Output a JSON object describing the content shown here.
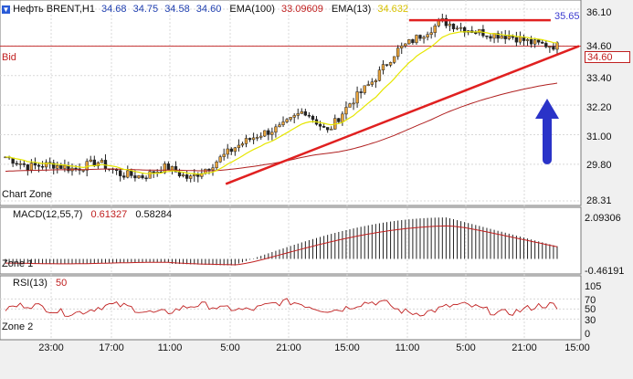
{
  "header": {
    "instrument": "Нефть BRENT,H1",
    "ohlc": [
      "34.68",
      "34.75",
      "34.58",
      "34.60"
    ],
    "ema100_label": "EMA(100)",
    "ema100_value": "33.09609",
    "ema13_label": "EMA(13)",
    "ema13_value": "34.632"
  },
  "main": {
    "bid_label": "Bid",
    "zone_label": "Chart Zone",
    "current_price": "34.60",
    "high_label": "35.65"
  },
  "macd": {
    "title": "MACD(12,55,7)",
    "value1": "0.61327",
    "value2": "0.58284",
    "zone_label": "Zone 1"
  },
  "rsi": {
    "title": "RSI(13)",
    "value": "50",
    "zone_label": "Zone 2"
  },
  "colors": {
    "bull": "#e8a33a",
    "bear": "#222222",
    "ema13": "#e6e600",
    "ema100": "#b02020",
    "trend": "#e02020",
    "arrow": "#2a33c8",
    "macd_signal": "#c02020",
    "rsi": "#c02020",
    "bid": "#c02020"
  },
  "chart_data": [
    {
      "type": "candlestick",
      "title": "Нефть BRENT,H1",
      "ylim": [
        28.31,
        36.1
      ],
      "y_ticks": [
        "36.10",
        "34.60",
        "33.40",
        "32.20",
        "31.00",
        "29.80",
        "28.31"
      ],
      "x_ticks": [
        "23:00",
        "17:00",
        "11:00",
        "5:00",
        "21:00",
        "15:00",
        "11:00",
        "5:00",
        "21:00",
        "15:00"
      ],
      "price_anchors": [
        30.1,
        29.7,
        29.8,
        29.6,
        29.9,
        29.4,
        29.3,
        29.7,
        29.2,
        29.8,
        30.5,
        31.0,
        31.3,
        32.0,
        31.1,
        32.3,
        33.2,
        34.4,
        35.0,
        35.6,
        35.3,
        35.1,
        35.0,
        34.7,
        34.6
      ],
      "series": [
        {
          "name": "EMA(13)",
          "last_value": 34.632
        },
        {
          "name": "EMA(100)",
          "last_value": 33.09609
        }
      ],
      "bid": 34.6,
      "trendline_start": 29.0,
      "trendline_end": 34.6,
      "resistance_level": 35.65
    },
    {
      "type": "bar",
      "title": "MACD(12,55,7)",
      "ylim": [
        -0.46191,
        2.09306
      ],
      "y_ticks": [
        "2.09306",
        "-0.46191"
      ],
      "main_last": 0.61327,
      "signal_last": 0.58284,
      "main_peak": 2.0
    },
    {
      "type": "line",
      "title": "RSI(13)",
      "ylim": [
        0,
        105
      ],
      "y_ticks": [
        "105",
        "70",
        "50",
        "30",
        "0"
      ],
      "last_value": 50
    }
  ]
}
